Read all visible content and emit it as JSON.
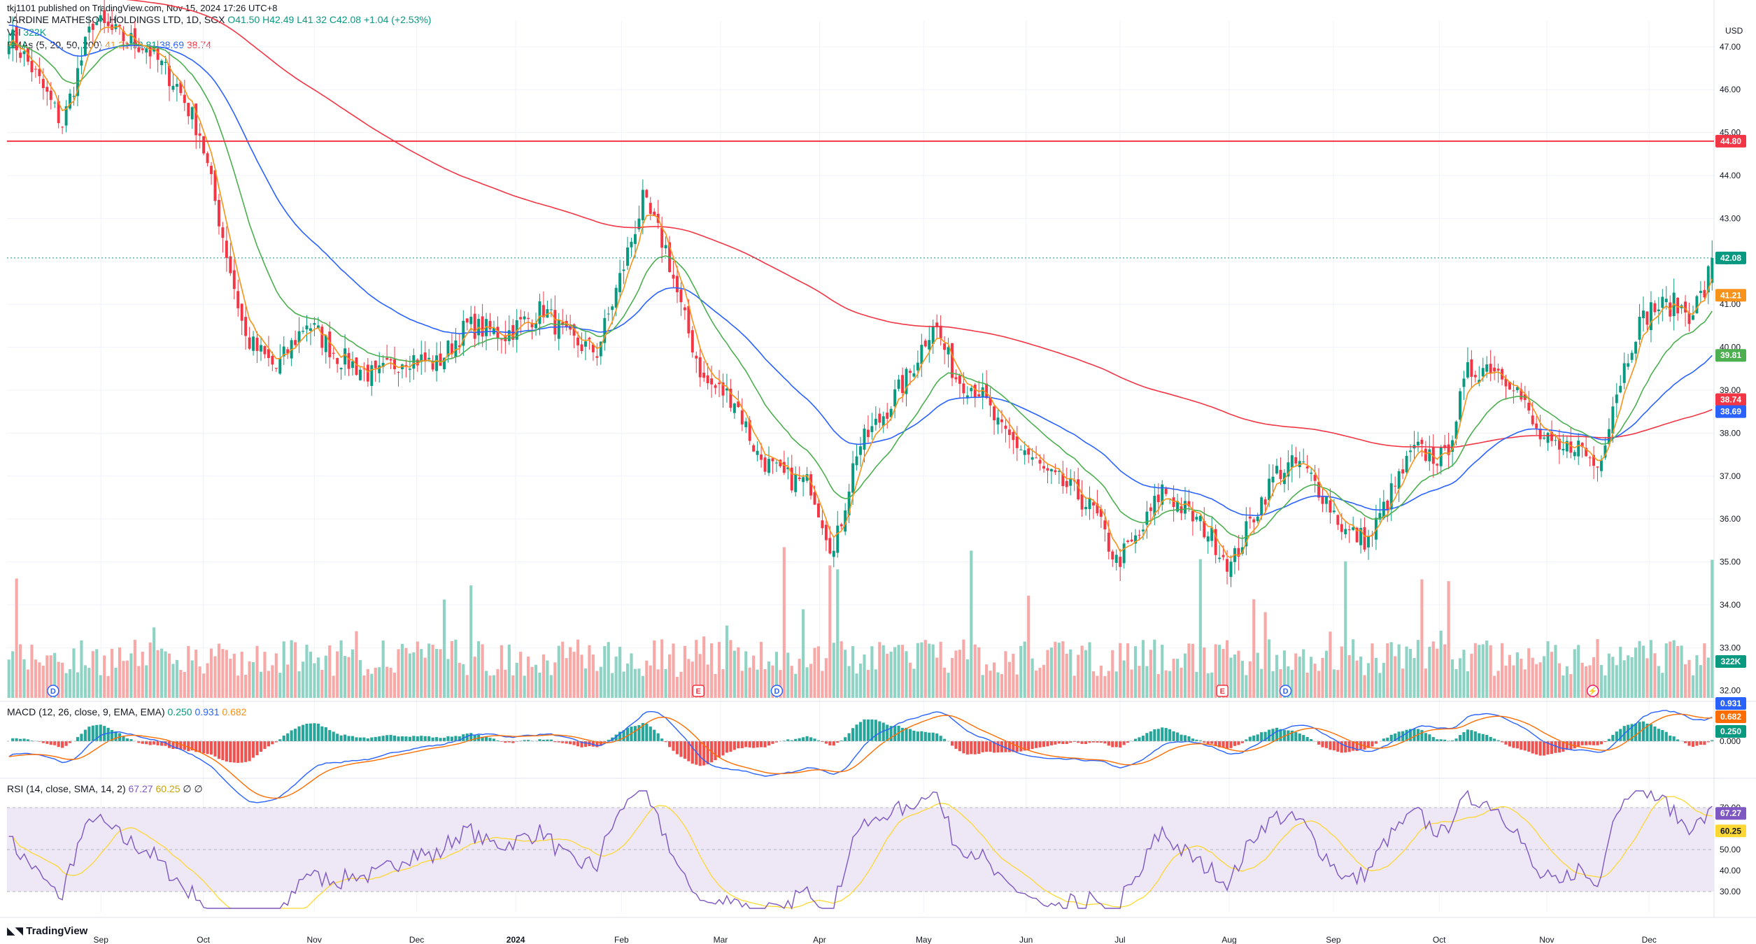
{
  "publisher_line": "tkj1101 published on TradingView.com, Nov 15, 2024 17:26 UTC+8",
  "symbol": {
    "name": "JARDINE MATHESON HOLDINGS LTD, 1D, SGX",
    "open": "O41.50",
    "high": "H42.49",
    "low": "L41.32",
    "close": "C42.08",
    "change": "+1.04 (+2.53%)"
  },
  "vol_legend": {
    "label": "Vol",
    "value": "322K"
  },
  "ema_legend": {
    "label": "EMAs (5, 20, 50, 200)",
    "v5": "41.21",
    "v20": "39.81",
    "v50": "38.69",
    "v200": "38.74"
  },
  "macd_legend": {
    "label": "MACD (12, 26, close, 9, EMA, EMA)",
    "hist": "0.250",
    "macd": "0.931",
    "signal": "0.682"
  },
  "rsi_legend": {
    "label": "RSI (14, close, SMA, 14, 2)",
    "rsi": "67.27",
    "ma": "60.25",
    "extra": "∅ ∅"
  },
  "currency": "USD",
  "brand": "TradingView",
  "colors": {
    "up": "#089981",
    "down": "#f23645",
    "ema5": "#f7931a",
    "ema20": "#4caf50",
    "ema50": "#2962ff",
    "ema200": "#f23645",
    "rsi": "#7e57c2",
    "rsi_ma": "#fdd835",
    "rsi_band": "#ede7f6"
  },
  "chart_data": {
    "type": "candlestick",
    "price_axis": {
      "min": 32.0,
      "max": 47.0,
      "ticks": [
        "47.00",
        "46.00",
        "45.00",
        "44.00",
        "43.00",
        "42.00",
        "41.00",
        "40.00",
        "39.00",
        "38.00",
        "37.00",
        "36.00",
        "35.00",
        "34.00",
        "33.00",
        "32.00"
      ]
    },
    "x_labels": [
      "Sep",
      "Oct",
      "Nov",
      "Dec",
      "2024",
      "Feb",
      "Mar",
      "Apr",
      "May",
      "Jun",
      "Jul",
      "Aug",
      "Sep",
      "Oct",
      "Nov",
      "Dec"
    ],
    "horizontal_line": {
      "value": 44.8,
      "label": "44.80"
    },
    "last_price": {
      "value": 42.08,
      "label": "42.08"
    },
    "price_tags": [
      {
        "label": "41.21",
        "value": 41.21,
        "color": "#f7931a"
      },
      {
        "label": "39.81",
        "value": 39.81,
        "color": "#4caf50"
      },
      {
        "label": "38.74",
        "value": 38.74,
        "color": "#f23645"
      },
      {
        "label": "38.69",
        "value": 38.69,
        "color": "#2962ff"
      }
    ],
    "close_anchors": [
      [
        0,
        47.3
      ],
      [
        6,
        46.5
      ],
      [
        14,
        45.2
      ],
      [
        22,
        47.6
      ],
      [
        30,
        47.2
      ],
      [
        36,
        47.0
      ],
      [
        44,
        46.1
      ],
      [
        50,
        45.0
      ],
      [
        56,
        42.6
      ],
      [
        62,
        40.2
      ],
      [
        70,
        39.5
      ],
      [
        78,
        40.6
      ],
      [
        86,
        39.8
      ],
      [
        96,
        39.3
      ],
      [
        104,
        39.8
      ],
      [
        112,
        39.6
      ],
      [
        120,
        40.5
      ],
      [
        130,
        40.3
      ],
      [
        140,
        40.9
      ],
      [
        146,
        40.2
      ],
      [
        154,
        39.9
      ],
      [
        160,
        41.6
      ],
      [
        166,
        43.4
      ],
      [
        172,
        42.3
      ],
      [
        176,
        40.9
      ],
      [
        182,
        39.2
      ],
      [
        190,
        38.8
      ],
      [
        196,
        37.5
      ],
      [
        202,
        37.0
      ],
      [
        210,
        36.8
      ],
      [
        216,
        35.2
      ],
      [
        222,
        37.6
      ],
      [
        228,
        38.3
      ],
      [
        236,
        39.4
      ],
      [
        242,
        40.6
      ],
      [
        248,
        39.3
      ],
      [
        254,
        39.0
      ],
      [
        260,
        38.0
      ],
      [
        266,
        37.6
      ],
      [
        272,
        37.0
      ],
      [
        278,
        36.7
      ],
      [
        284,
        36.2
      ],
      [
        290,
        35.0
      ],
      [
        296,
        35.6
      ],
      [
        302,
        36.7
      ],
      [
        308,
        36.2
      ],
      [
        314,
        35.7
      ],
      [
        320,
        34.9
      ],
      [
        326,
        36.1
      ],
      [
        332,
        37.1
      ],
      [
        338,
        37.3
      ],
      [
        344,
        36.6
      ],
      [
        350,
        35.7
      ],
      [
        356,
        35.5
      ],
      [
        362,
        36.6
      ],
      [
        368,
        37.6
      ],
      [
        376,
        37.4
      ],
      [
        382,
        39.4
      ],
      [
        388,
        39.6
      ],
      [
        394,
        39.2
      ],
      [
        400,
        38.0
      ],
      [
        406,
        37.5
      ],
      [
        410,
        37.8
      ],
      [
        416,
        37.2
      ],
      [
        420,
        38.7
      ],
      [
        426,
        40.4
      ],
      [
        430,
        40.9
      ],
      [
        436,
        41.0
      ],
      [
        440,
        40.8
      ],
      [
        444,
        41.3
      ],
      [
        446,
        42.08
      ]
    ],
    "volume_axis": {
      "max_label": "322K"
    },
    "macd": {
      "hist": 0.25,
      "macd": 0.931,
      "signal": 0.682,
      "zero_label": "0.000"
    },
    "rsi": {
      "value": 67.27,
      "ma": 60.25,
      "levels": [
        70,
        50,
        30
      ],
      "ticks": [
        "70.00",
        "50.00",
        "40.00",
        "30.00"
      ]
    },
    "event_markers": [
      "D",
      "E",
      "D",
      "E",
      "D"
    ]
  }
}
